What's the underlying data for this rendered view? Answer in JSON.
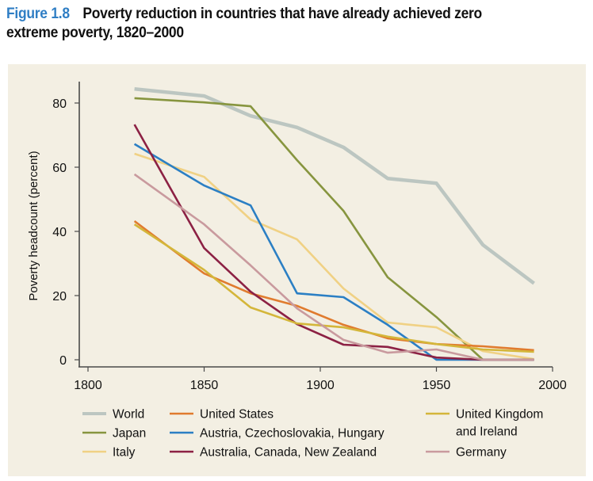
{
  "figure": {
    "number_label": "Figure 1.8",
    "title_line1": "Poverty reduction in countries that have already achieved zero",
    "title_line2": "extreme poverty, 1820–2000",
    "accent_color": "#2f7ec4",
    "panel_color": "#f3efe3"
  },
  "chart_data": {
    "type": "line",
    "title": "Poverty reduction in countries that have already achieved zero extreme poverty, 1820–2000",
    "xlabel": "",
    "ylabel": "Poverty headcount (percent)",
    "xlim": [
      1795,
      2000
    ],
    "ylim": [
      -2,
      86
    ],
    "x_ticks": [
      1800,
      1850,
      1900,
      1950,
      2000
    ],
    "y_ticks": [
      0,
      20,
      40,
      60,
      80
    ],
    "x_tick_labels": [
      "1800",
      "1850",
      "1900",
      "1950",
      "2000"
    ],
    "y_tick_labels": [
      "0",
      "20",
      "40",
      "60",
      "80"
    ],
    "grid": false,
    "legend_position": "bottom",
    "x": [
      1820,
      1850,
      1870,
      1890,
      1910,
      1929,
      1950,
      1970,
      1992
    ],
    "series": [
      {
        "name": "World",
        "color": "#bcc6c1",
        "thick": true,
        "values": [
          84.4,
          82.2,
          76.0,
          72.4,
          66.2,
          56.5,
          55.0,
          35.8,
          23.8
        ]
      },
      {
        "name": "Japan",
        "color": "#87953f",
        "values": [
          81.5,
          80.2,
          79.0,
          62.2,
          46.4,
          25.7,
          13.3,
          0.0,
          0.0
        ]
      },
      {
        "name": "Italy",
        "color": "#f0d184",
        "values": [
          64.2,
          57.0,
          43.7,
          37.5,
          22.2,
          11.6,
          10.1,
          2.7,
          0.2
        ]
      },
      {
        "name": "United States",
        "color": "#e07b2e",
        "values": [
          43.2,
          26.9,
          20.7,
          16.8,
          10.9,
          6.7,
          4.9,
          4.2,
          3.0
        ]
      },
      {
        "name": "Austria, Czechoslovakia, Hungary",
        "color": "#2b7fc4",
        "values": [
          67.2,
          54.3,
          48.1,
          20.7,
          19.5,
          10.9,
          0.0,
          0.0,
          0.0
        ]
      },
      {
        "name": "Australia, Canada, New Zealand",
        "color": "#8c2144",
        "values": [
          73.3,
          34.8,
          21.2,
          11.1,
          4.7,
          4.0,
          0.7,
          0.0,
          0.0
        ]
      },
      {
        "name": "United Kingdom and Ireland",
        "color": "#d4b63a",
        "values": [
          42.2,
          28.0,
          16.3,
          11.3,
          10.1,
          7.2,
          4.9,
          3.2,
          2.5
        ]
      },
      {
        "name": "Germany",
        "color": "#c99a9e",
        "values": [
          57.8,
          42.2,
          29.4,
          16.0,
          6.2,
          2.2,
          3.2,
          0.0,
          0.0
        ]
      }
    ],
    "legend": [
      {
        "label": "World",
        "color": "#bcc6c1"
      },
      {
        "label": "Japan",
        "color": "#87953f"
      },
      {
        "label": "Italy",
        "color": "#f0d184"
      },
      {
        "label": "United States",
        "color": "#e07b2e"
      },
      {
        "label": "Austria, Czechoslovakia, Hungary",
        "color": "#2b7fc4"
      },
      {
        "label": "Australia, Canada, New Zealand",
        "color": "#8c2144"
      },
      {
        "label": "United Kingdom",
        "label_line2": "and Ireland",
        "color": "#d4b63a"
      },
      {
        "label": "Germany",
        "color": "#c99a9e"
      }
    ]
  }
}
